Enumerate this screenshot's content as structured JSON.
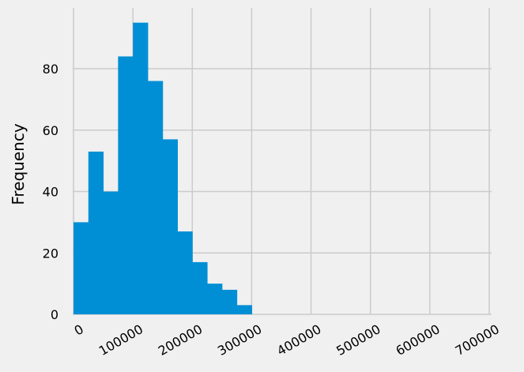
{
  "chart_data": {
    "type": "histogram",
    "title": "",
    "xlabel": "",
    "ylabel": "Frequency",
    "bin_width": 25000,
    "bins": [
      {
        "start": 0,
        "end": 25000,
        "count": 30
      },
      {
        "start": 25000,
        "end": 50000,
        "count": 53
      },
      {
        "start": 50000,
        "end": 75000,
        "count": 40
      },
      {
        "start": 75000,
        "end": 100000,
        "count": 84
      },
      {
        "start": 100000,
        "end": 125000,
        "count": 95
      },
      {
        "start": 125000,
        "end": 150000,
        "count": 76
      },
      {
        "start": 150000,
        "end": 175000,
        "count": 57
      },
      {
        "start": 175000,
        "end": 200000,
        "count": 27
      },
      {
        "start": 200000,
        "end": 225000,
        "count": 17
      },
      {
        "start": 225000,
        "end": 250000,
        "count": 10
      },
      {
        "start": 250000,
        "end": 275000,
        "count": 8
      },
      {
        "start": 275000,
        "end": 300000,
        "count": 3
      }
    ],
    "xlim": [
      0,
      700000
    ],
    "ylim": [
      0,
      100
    ],
    "x_ticks": [
      "0",
      "100000",
      "200000",
      "300000",
      "400000",
      "500000",
      "600000",
      "700000"
    ],
    "y_ticks": [
      "0",
      "20",
      "40",
      "60",
      "80"
    ],
    "grid": true,
    "bar_color": "#008fd5",
    "background_color": "#f0f0f0",
    "grid_color": "#cbcbcb"
  }
}
